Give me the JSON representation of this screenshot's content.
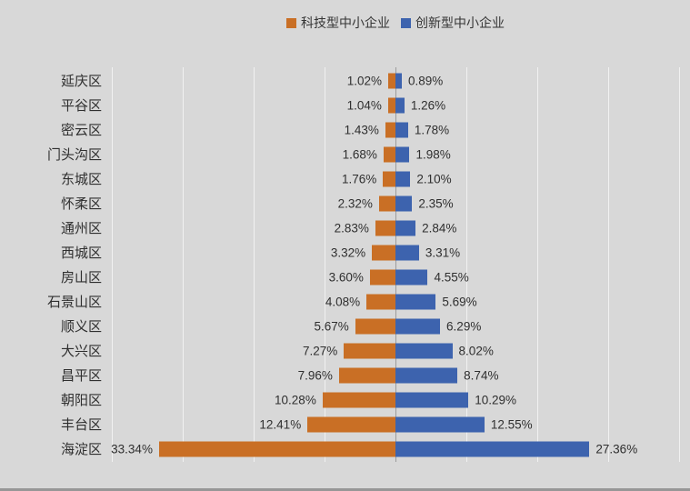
{
  "colors": {
    "background": "#d8d8d8",
    "orange": "#c96f25",
    "blue": "#3d63ae",
    "gridline": "rgba(255,255,255,0.65)",
    "center_axis": "#9c9c9c",
    "text": "#2f2f2f"
  },
  "chart_data": {
    "type": "bar",
    "orientation": "diverging-horizontal",
    "title": "",
    "legend_position": "top-center",
    "grid": "on",
    "axis": {
      "center_value": 0,
      "max_percent_each_side": 40,
      "gridline_interval_percent": 10,
      "tick_labels_visible": false
    },
    "categories": [
      "延庆区",
      "平谷区",
      "密云区",
      "门头沟区",
      "东城区",
      "怀柔区",
      "通州区",
      "西城区",
      "房山区",
      "石景山区",
      "顺义区",
      "大兴区",
      "昌平区",
      "朝阳区",
      "丰台区",
      "海淀区"
    ],
    "series": [
      {
        "name": "科技型中小企业",
        "side": "left",
        "color": "#c96f25",
        "values": [
          1.02,
          1.04,
          1.43,
          1.68,
          1.76,
          2.32,
          2.83,
          3.32,
          3.6,
          4.08,
          5.67,
          7.27,
          7.96,
          10.28,
          12.41,
          33.34
        ],
        "labels": [
          "1.02%",
          "1.04%",
          "1.43%",
          "1.68%",
          "1.76%",
          "2.32%",
          "2.83%",
          "3.32%",
          "3.60%",
          "4.08%",
          "5.67%",
          "7.27%",
          "7.96%",
          "10.28%",
          "12.41%",
          "33.34%"
        ]
      },
      {
        "name": "创新型中小企业",
        "side": "right",
        "color": "#3d63ae",
        "values": [
          0.89,
          1.26,
          1.78,
          1.98,
          2.1,
          2.35,
          2.84,
          3.31,
          4.55,
          5.69,
          6.29,
          8.02,
          8.74,
          10.29,
          12.55,
          27.36
        ],
        "labels": [
          "0.89%",
          "1.26%",
          "1.78%",
          "1.98%",
          "2.10%",
          "2.35%",
          "2.84%",
          "3.31%",
          "4.55%",
          "5.69%",
          "6.29%",
          "8.02%",
          "8.74%",
          "10.29%",
          "12.55%",
          "27.36%"
        ]
      }
    ]
  }
}
